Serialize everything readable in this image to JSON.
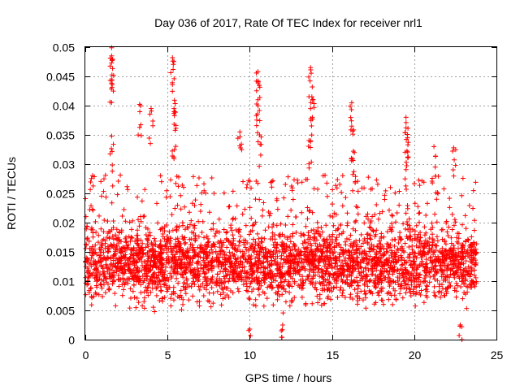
{
  "chart_data": {
    "type": "scatter",
    "title": "Day 036 of 2017, Rate Of TEC Index for receiver nrl1",
    "xlabel": "GPS time / hours",
    "ylabel": "ROTI / TECUs",
    "xlim": [
      0,
      25
    ],
    "ylim": [
      0,
      0.05
    ],
    "x_ticks": [
      0,
      5,
      10,
      15,
      20,
      25
    ],
    "x_tick_labels": [
      "0",
      "5",
      "10",
      "15",
      "20",
      "25"
    ],
    "y_ticks": [
      0,
      0.005,
      0.01,
      0.015,
      0.02,
      0.025,
      0.03,
      0.035,
      0.04,
      0.045,
      0.05
    ],
    "y_tick_labels": [
      "0",
      "0.005",
      "0.01",
      "0.015",
      "0.02",
      "0.025",
      "0.03",
      "0.035",
      "0.04",
      "0.045",
      "0.05"
    ],
    "grid": true,
    "marker": "+",
    "series": [
      {
        "name": "ROTI",
        "color": "#ff0000",
        "x_range": [
          0,
          23.8
        ],
        "typical_range": [
          0.004,
          0.025
        ],
        "notable_points": [
          {
            "x": 1.6,
            "y": 0.0499
          },
          {
            "x": 1.6,
            "y": 0.0485
          },
          {
            "x": 1.6,
            "y": 0.0438
          },
          {
            "x": 1.6,
            "y": 0.0348
          },
          {
            "x": 3.3,
            "y": 0.0402
          },
          {
            "x": 4.0,
            "y": 0.0395
          },
          {
            "x": 5.3,
            "y": 0.0482
          },
          {
            "x": 5.4,
            "y": 0.0446
          },
          {
            "x": 5.4,
            "y": 0.039
          },
          {
            "x": 5.4,
            "y": 0.0368
          },
          {
            "x": 9.4,
            "y": 0.0355
          },
          {
            "x": 10.5,
            "y": 0.0458
          },
          {
            "x": 10.5,
            "y": 0.0442
          },
          {
            "x": 10.5,
            "y": 0.041
          },
          {
            "x": 10.6,
            "y": 0.035
          },
          {
            "x": 13.7,
            "y": 0.0465
          },
          {
            "x": 13.8,
            "y": 0.0432
          },
          {
            "x": 13.7,
            "y": 0.0395
          },
          {
            "x": 13.7,
            "y": 0.034
          },
          {
            "x": 16.2,
            "y": 0.0405
          },
          {
            "x": 16.2,
            "y": 0.0365
          },
          {
            "x": 16.3,
            "y": 0.0322
          },
          {
            "x": 19.5,
            "y": 0.038
          },
          {
            "x": 19.5,
            "y": 0.0362
          },
          {
            "x": 19.6,
            "y": 0.0345
          },
          {
            "x": 21.2,
            "y": 0.033
          },
          {
            "x": 22.4,
            "y": 0.0328
          },
          {
            "x": 10.0,
            "y": 0.0018
          },
          {
            "x": 12.0,
            "y": 0.0025
          },
          {
            "x": 22.8,
            "y": 0.0025
          }
        ]
      }
    ]
  }
}
